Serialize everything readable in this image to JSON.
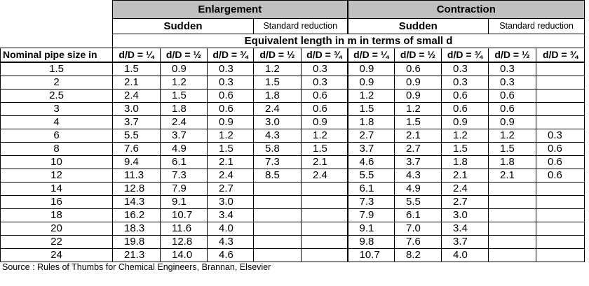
{
  "headers": {
    "enlargement": "Enlargement",
    "contraction": "Contraction",
    "sudden": "Sudden",
    "standard_reduction": "Standard reduction",
    "equivalent_length": "Equivalent length in m in terms of small d"
  },
  "columns": {
    "nominal_pipe_size": "Nominal pipe size in",
    "enl_sudden": [
      "d/D = ¼",
      "d/D = ½",
      "d/D = ¾"
    ],
    "enl_standard": [
      "d/D = ½",
      "d/D = ¾"
    ],
    "con_sudden": [
      "d/D = ¼",
      "d/D = ½",
      "d/D = ¾"
    ],
    "con_standard": [
      "d/D = ½",
      "d/D = ¾"
    ]
  },
  "rows": [
    [
      "1.5",
      "1.5",
      "0.9",
      "0.3",
      "1.2",
      "0.3",
      "0.9",
      "0.6",
      "0.3",
      "0.3",
      ""
    ],
    [
      "2",
      "2.1",
      "1.2",
      "0.3",
      "1.5",
      "0.3",
      "0.9",
      "0.9",
      "0.3",
      "0.3",
      ""
    ],
    [
      "2.5",
      "2.4",
      "1.5",
      "0.6",
      "1.8",
      "0.6",
      "1.2",
      "0.9",
      "0.6",
      "0.6",
      ""
    ],
    [
      "3",
      "3.0",
      "1.8",
      "0.6",
      "2.4",
      "0.6",
      "1.5",
      "1.2",
      "0.6",
      "0.6",
      ""
    ],
    [
      "4",
      "3.7",
      "2.4",
      "0.9",
      "3.0",
      "0.9",
      "1.8",
      "1.5",
      "0.9",
      "0.9",
      ""
    ],
    [
      "6",
      "5.5",
      "3.7",
      "1.2",
      "4.3",
      "1.2",
      "2.7",
      "2.1",
      "1.2",
      "1.2",
      "0.3"
    ],
    [
      "8",
      "7.6",
      "4.9",
      "1.5",
      "5.8",
      "1.5",
      "3.7",
      "2.7",
      "1.5",
      "1.5",
      "0.6"
    ],
    [
      "10",
      "9.4",
      "6.1",
      "2.1",
      "7.3",
      "2.1",
      "4.6",
      "3.7",
      "1.8",
      "1.8",
      "0.6"
    ],
    [
      "12",
      "11.3",
      "7.3",
      "2.4",
      "8.5",
      "2.4",
      "5.5",
      "4.3",
      "2.1",
      "2.1",
      "0.6"
    ],
    [
      "14",
      "12.8",
      "7.9",
      "2.7",
      "",
      "",
      "6.1",
      "4.9",
      "2.4",
      "",
      ""
    ],
    [
      "16",
      "14.3",
      "9.1",
      "3.0",
      "",
      "",
      "7.3",
      "5.5",
      "2.7",
      "",
      ""
    ],
    [
      "18",
      "16.2",
      "10.7",
      "3.4",
      "",
      "",
      "7.9",
      "6.1",
      "3.0",
      "",
      ""
    ],
    [
      "20",
      "18.3",
      "11.6",
      "4.0",
      "",
      "",
      "9.1",
      "7.0",
      "3.4",
      "",
      ""
    ],
    [
      "22",
      "19.8",
      "12.8",
      "4.3",
      "",
      "",
      "9.8",
      "7.6",
      "3.7",
      "",
      ""
    ],
    [
      "24",
      "21.3",
      "14.0",
      "4.6",
      "",
      "",
      "10.7",
      "8.2",
      "4.0",
      "",
      ""
    ]
  ],
  "source": "Source : Rules of Thumbs for Chemical Engineers, Brannan, Elsevier"
}
